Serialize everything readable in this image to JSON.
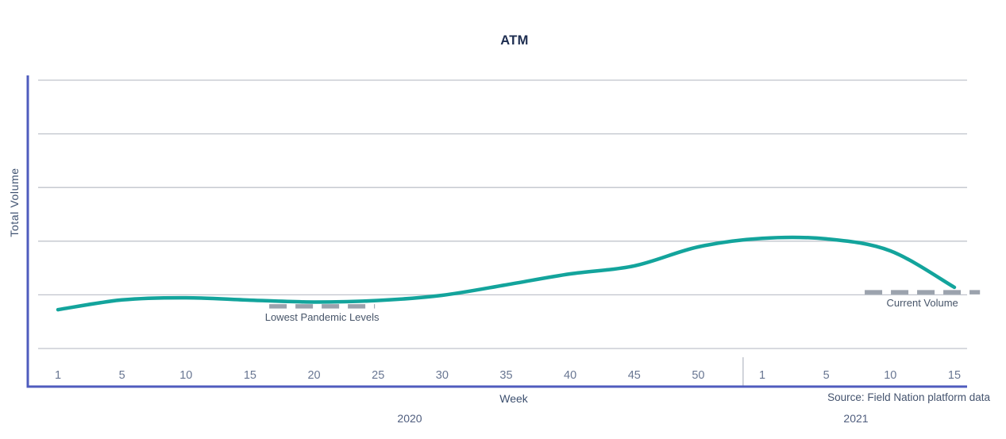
{
  "chart_data": {
    "type": "line",
    "title": "ATM",
    "xlabel": "Week",
    "ylabel": "Total Volume",
    "source": "Source: Field Nation platform data",
    "x_tick_labels": [
      "1",
      "5",
      "10",
      "15",
      "20",
      "25",
      "30",
      "35",
      "40",
      "45",
      "50",
      "1",
      "5",
      "10",
      "15"
    ],
    "year_groups": [
      {
        "label": "2020",
        "from_tick": 0,
        "to_tick": 10
      },
      {
        "label": "2021",
        "from_tick": 11,
        "to_tick": 14
      }
    ],
    "y_axis": {
      "min": 0,
      "max": 100,
      "numeric_labels_visible": false,
      "gridline_count": 6
    },
    "legend": "none",
    "series": [
      {
        "name": "ATM Total Volume",
        "color": "#13a49c",
        "values": [
          25.1,
          28.3,
          29.0,
          28.2,
          27.6,
          28.1,
          29.8,
          33.2,
          36.8,
          39.4,
          45.6,
          48.4,
          48.2,
          44.3,
          32.4
        ]
      }
    ],
    "annotations": [
      {
        "name": "lowest-pandemic-level",
        "label": "Lowest Pandemic Levels",
        "value": 26.2,
        "tick_start": 3.3,
        "tick_end": 4.95
      },
      {
        "name": "current-volume",
        "label": "Current Volume",
        "value": 30.8,
        "tick_start": 12.6,
        "tick_end": 14.4
      }
    ]
  },
  "colors": {
    "series": "#13a49c",
    "axis": "#4f5cbe",
    "gridline": "#c0c4cc",
    "year_separator": "#c5c9d1",
    "annotation_dash": "#9ba2ad",
    "tick_text": "#687692",
    "annotation_text": "#475569",
    "title_text": "#1d2d50"
  }
}
